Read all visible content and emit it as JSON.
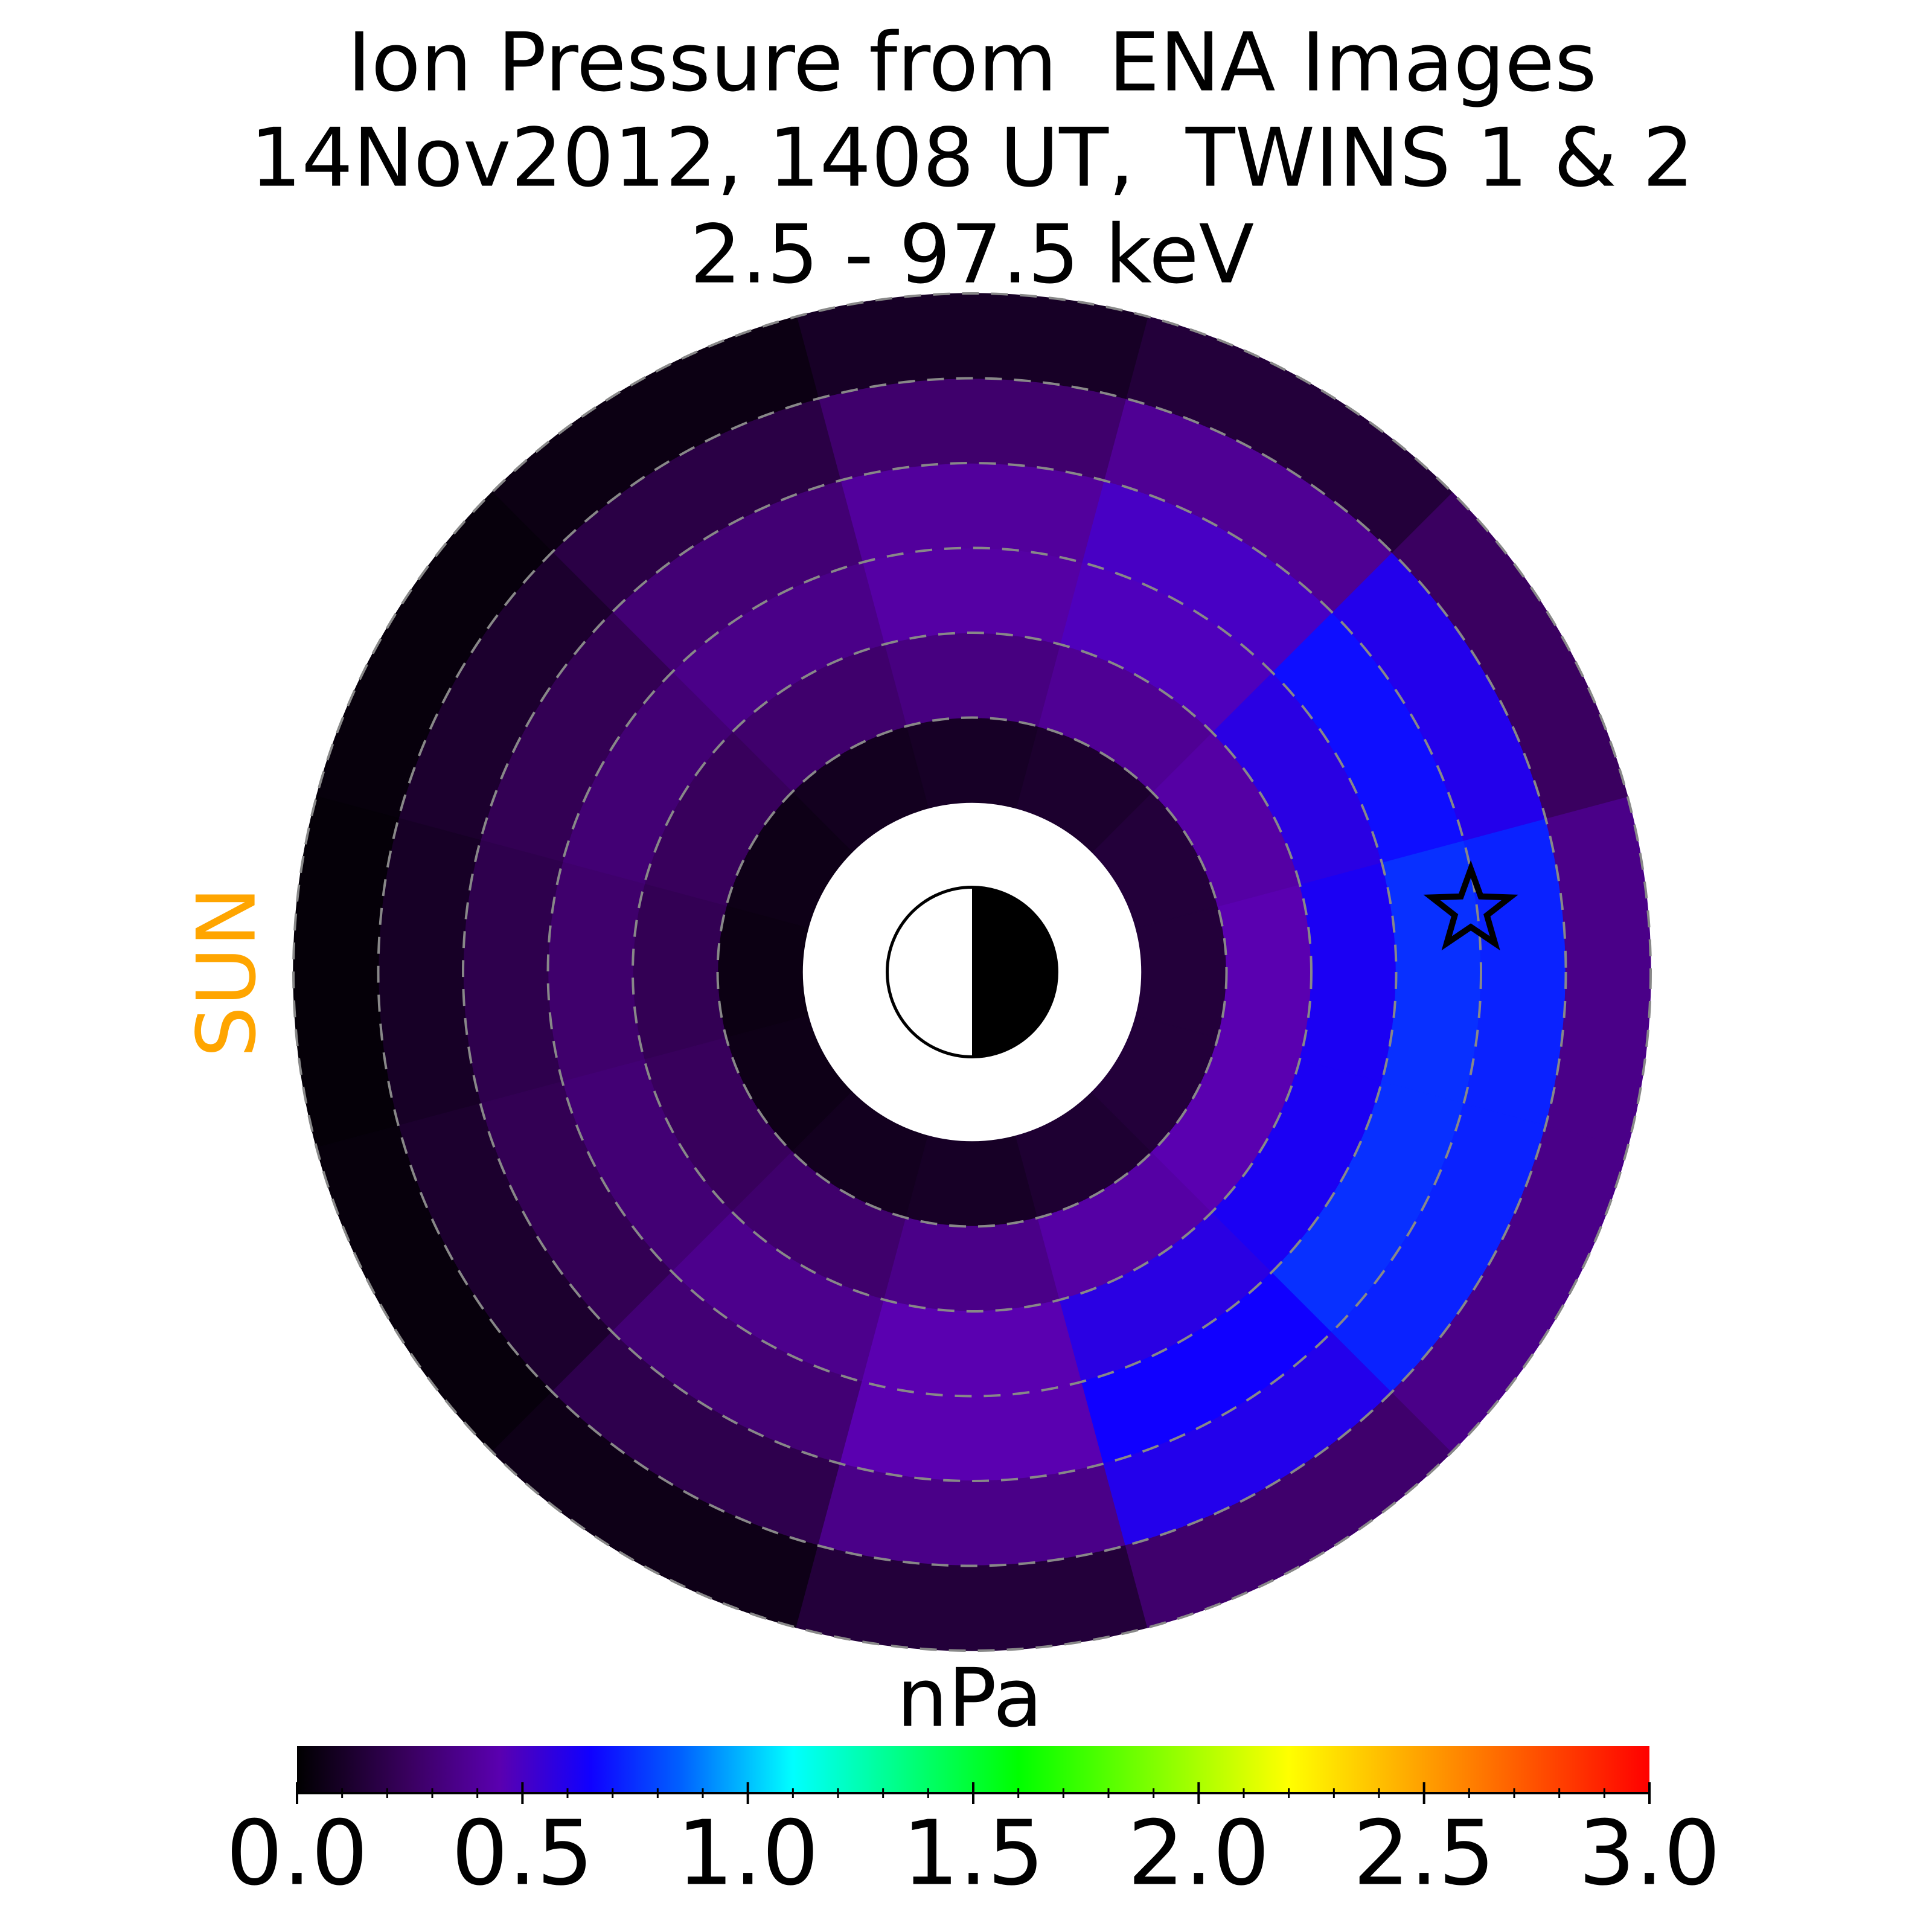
{
  "chart_data": {
    "type": "polar-heatmap",
    "title": [
      "Ion Pressure from  ENA Images",
      "14Nov2012, 1408 UT,  TWINS 1 & 2",
      "2.5 - 97.5 keV"
    ],
    "sun_label": "SUN",
    "colorbar_label": "nPa",
    "r_edges": [
      2,
      3,
      4,
      5,
      6,
      7,
      8
    ],
    "theta_edges_deg": [
      -15,
      15,
      45,
      75,
      105,
      135,
      165,
      195,
      225,
      255,
      285,
      315,
      345
    ],
    "values": [
      [
        0.15,
        0.15,
        0.12,
        0.1,
        0.08,
        0.06,
        0.05,
        0.06,
        0.08,
        0.1,
        0.13,
        0.15
      ],
      [
        0.45,
        0.42,
        0.38,
        0.33,
        0.28,
        0.24,
        0.22,
        0.24,
        0.28,
        0.35,
        0.42,
        0.45
      ],
      [
        0.62,
        0.58,
        0.48,
        0.42,
        0.35,
        0.3,
        0.28,
        0.3,
        0.36,
        0.45,
        0.58,
        0.62
      ],
      [
        0.75,
        0.68,
        0.5,
        0.4,
        0.3,
        0.22,
        0.2,
        0.22,
        0.3,
        0.45,
        0.65,
        0.75
      ],
      [
        0.72,
        0.6,
        0.38,
        0.28,
        0.18,
        0.12,
        0.1,
        0.12,
        0.2,
        0.35,
        0.6,
        0.72
      ],
      [
        0.35,
        0.25,
        0.15,
        0.1,
        0.05,
        0.03,
        0.02,
        0.03,
        0.06,
        0.15,
        0.28,
        0.35
      ]
    ],
    "rgrid": [
      3,
      4,
      5,
      6,
      7,
      8
    ],
    "star": {
      "x": 5.88,
      "y": 0.73
    },
    "clim": [
      0,
      3
    ],
    "cticks": [
      {
        "value": 0,
        "label": "0.0"
      },
      {
        "value": 0.5,
        "label": "0.5"
      },
      {
        "value": 1,
        "label": "1.0"
      },
      {
        "value": 1.5,
        "label": "1.5"
      },
      {
        "value": 2,
        "label": "2.0"
      },
      {
        "value": 2.5,
        "label": "2.5"
      },
      {
        "value": 3,
        "label": "3.0"
      }
    ],
    "cticks_minor": [
      0.1,
      0.2,
      0.3,
      0.4,
      0.6,
      0.7,
      0.8,
      0.9,
      1.1,
      1.2,
      1.3,
      1.4,
      1.6,
      1.7,
      1.8,
      1.9,
      2.1,
      2.2,
      2.3,
      2.4,
      2.6,
      2.7,
      2.8,
      2.9
    ],
    "colormap": [
      {
        "value": 0,
        "color": "#000000"
      },
      {
        "value": 0.25,
        "color": "#3a0060"
      },
      {
        "value": 0.45,
        "color": "#5a00b0"
      },
      {
        "value": 0.65,
        "color": "#1000ff"
      },
      {
        "value": 0.85,
        "color": "#0060ff"
      },
      {
        "value": 1.1,
        "color": "#00ffff"
      },
      {
        "value": 1.6,
        "color": "#00ff00"
      },
      {
        "value": 2.2,
        "color": "#ffff00"
      },
      {
        "value": 2.6,
        "color": "#ff8000"
      },
      {
        "value": 3,
        "color": "#ff0000"
      }
    ],
    "sun_color": "#ffa500",
    "grid_color": "#888888"
  }
}
